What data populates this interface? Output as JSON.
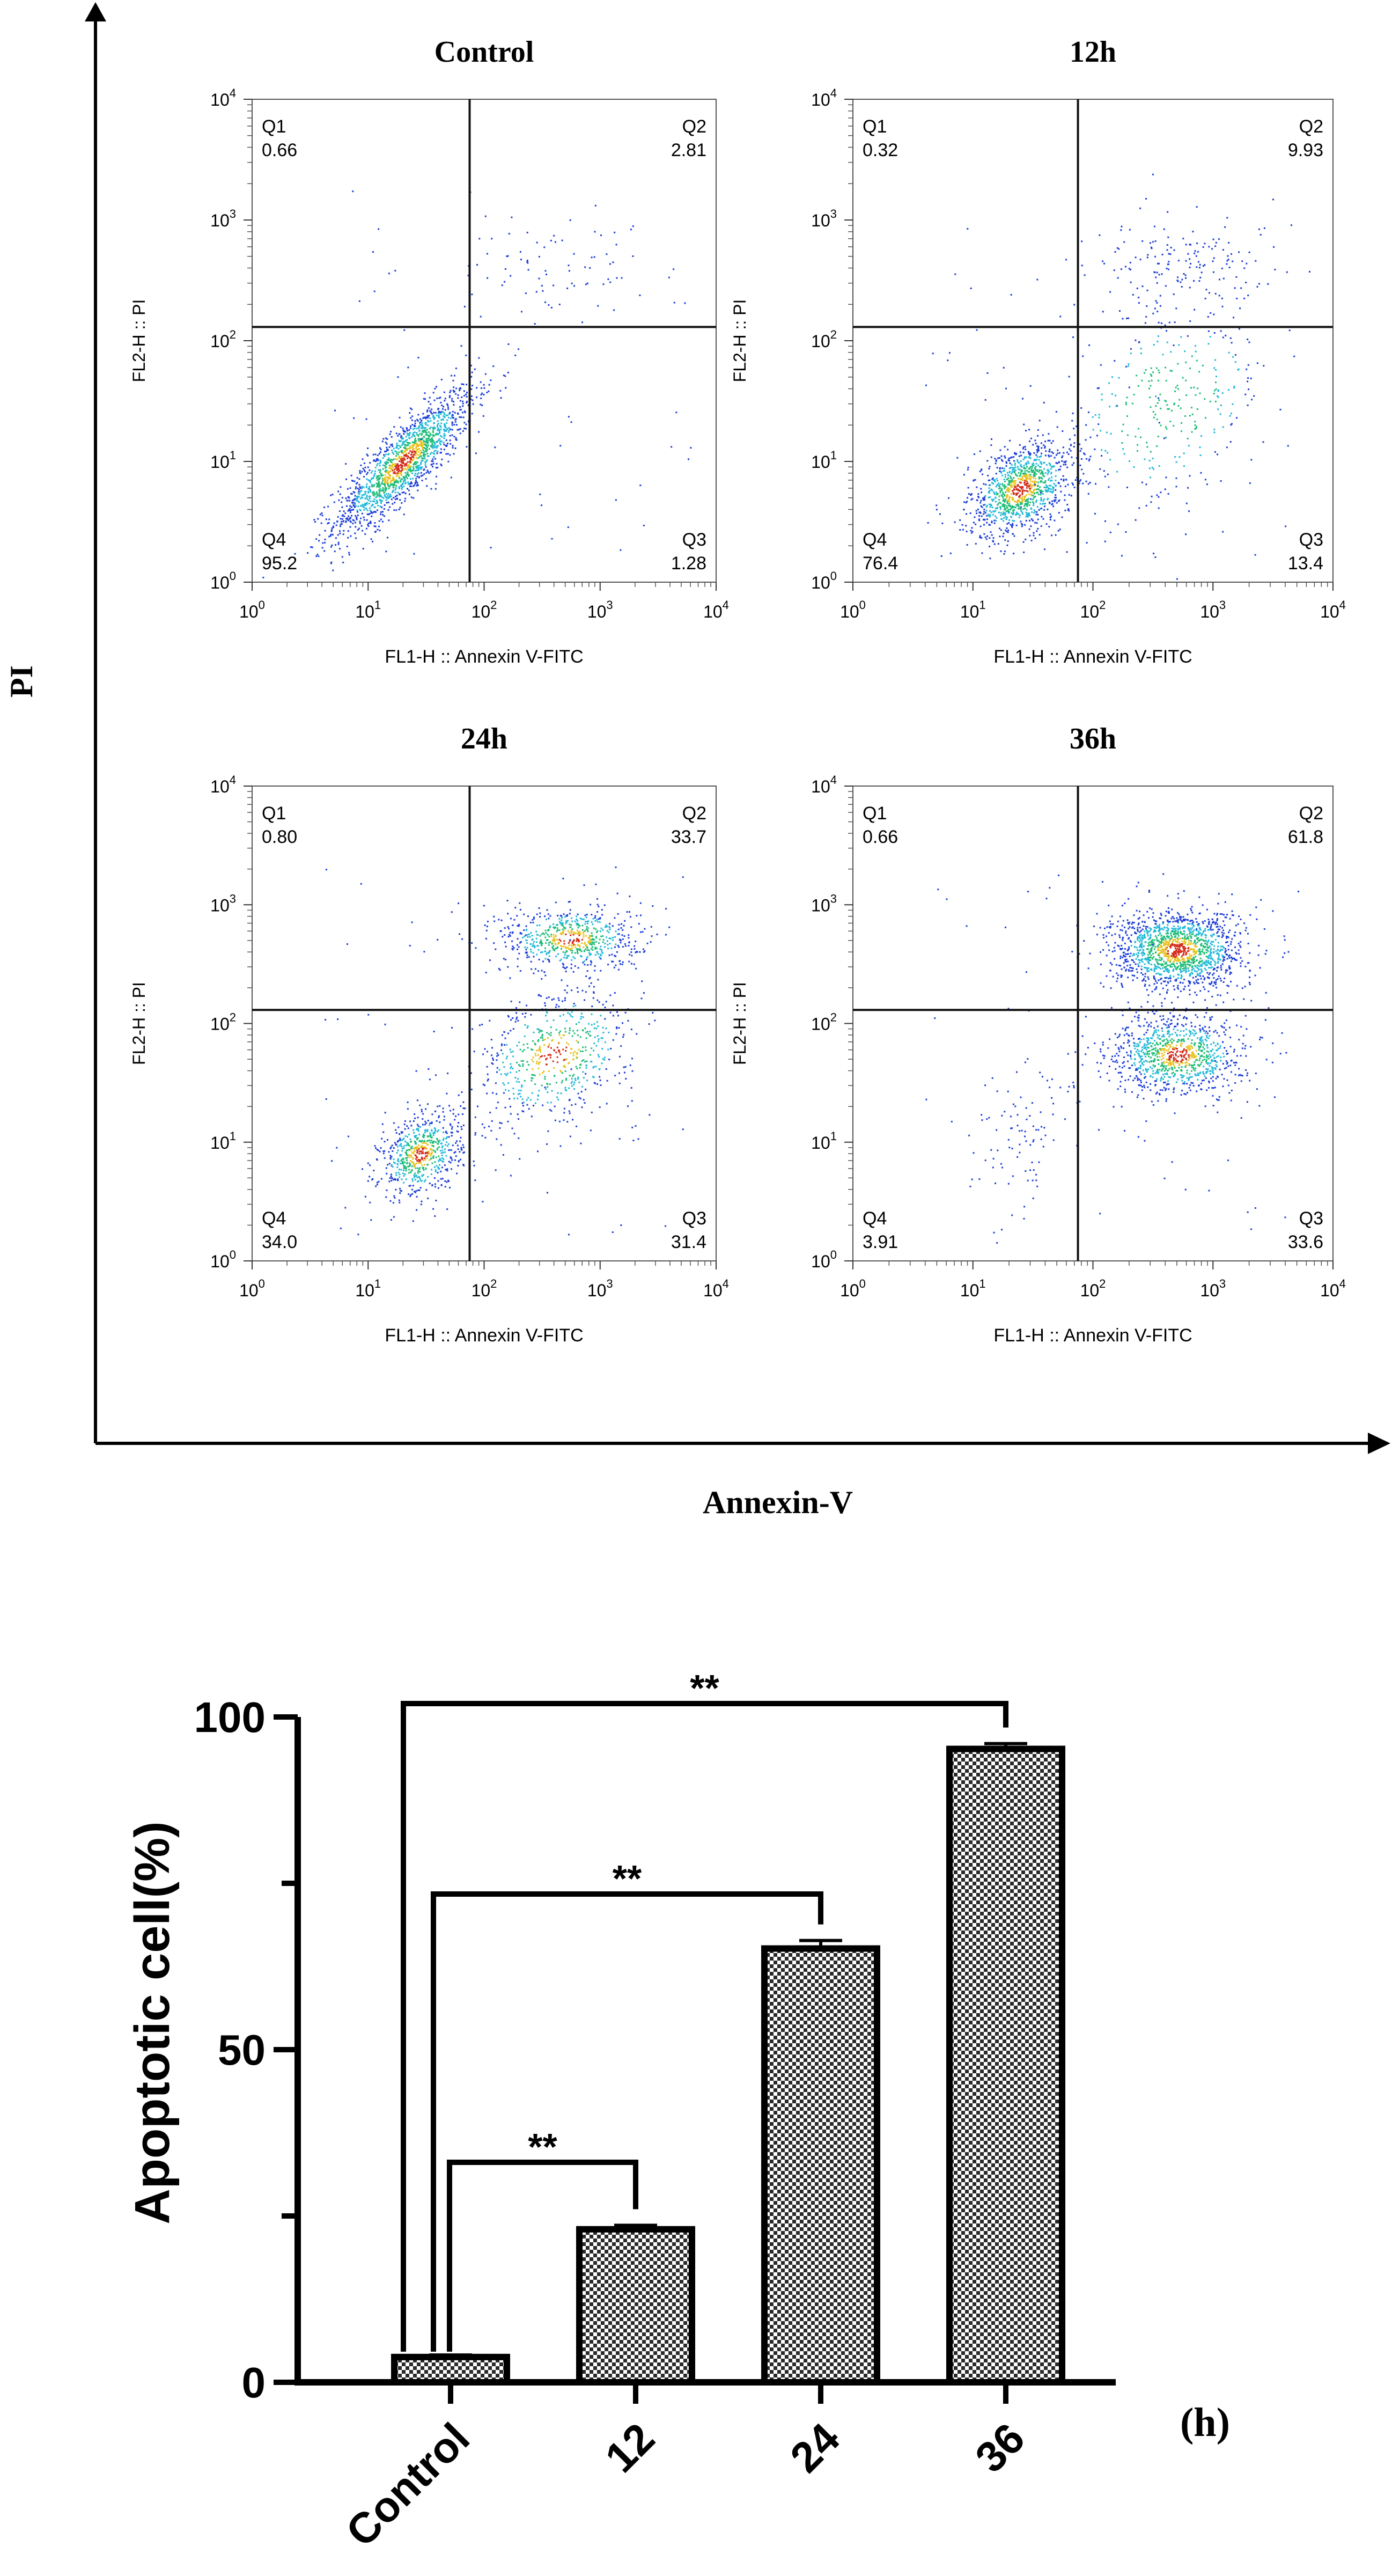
{
  "figure": {
    "outer_y_label": "PI",
    "outer_x_label": "Annexin-V"
  },
  "chart_data": [
    {
      "type": "scatter",
      "title": "Control",
      "xlabel": "FL1-H :: Annexin V-FITC",
      "ylabel": "FL2-H :: PI",
      "scale": "log",
      "xlim": [
        1,
        10000
      ],
      "ylim": [
        1,
        10000
      ],
      "xticks": [
        "10",
        "10",
        "10",
        "10",
        "10"
      ],
      "xtick_exps": [
        "0",
        "1",
        "2",
        "3",
        "4"
      ],
      "gate": {
        "x": 75,
        "y": 130
      },
      "quadrants": {
        "q1": {
          "label": "Q1",
          "value": "0.66"
        },
        "q2": {
          "label": "Q2",
          "value": "2.81"
        },
        "q3": {
          "label": "Q3",
          "value": "1.28"
        },
        "q4": {
          "label": "Q4",
          "value": "95.2"
        }
      },
      "populations": [
        {
          "cx": 20,
          "cy": 10,
          "sx": 0.3,
          "sy": 0.3,
          "n": 1600,
          "corr": 0.85
        },
        {
          "cx": 400,
          "cy": 400,
          "sx": 0.4,
          "sy": 0.18,
          "n": 70,
          "corr": 0
        }
      ]
    },
    {
      "type": "scatter",
      "title": "12h",
      "xlabel": "FL1-H :: Annexin V-FITC",
      "ylabel": "FL2-H :: PI",
      "scale": "log",
      "xlim": [
        1,
        10000
      ],
      "ylim": [
        1,
        10000
      ],
      "gate": {
        "x": 75,
        "y": 130
      },
      "quadrants": {
        "q1": {
          "label": "Q1",
          "value": "0.32"
        },
        "q2": {
          "label": "Q2",
          "value": "9.93"
        },
        "q3": {
          "label": "Q3",
          "value": "13.4"
        },
        "q4": {
          "label": "Q4",
          "value": "76.4"
        }
      },
      "populations": [
        {
          "cx": 25,
          "cy": 6,
          "sx": 0.22,
          "sy": 0.2,
          "n": 1100,
          "corr": 0.4
        },
        {
          "cx": 400,
          "cy": 30,
          "sx": 0.45,
          "sy": 0.45,
          "n": 350,
          "corr": 0.3
        },
        {
          "cx": 500,
          "cy": 450,
          "sx": 0.35,
          "sy": 0.15,
          "n": 140,
          "corr": 0
        }
      ]
    },
    {
      "type": "scatter",
      "title": "24h",
      "xlabel": "FL1-H :: Annexin V-FITC",
      "ylabel": "FL2-H :: PI",
      "scale": "log",
      "xlim": [
        1,
        10000
      ],
      "ylim": [
        1,
        10000
      ],
      "gate": {
        "x": 75,
        "y": 130
      },
      "quadrants": {
        "q1": {
          "label": "Q1",
          "value": "0.80"
        },
        "q2": {
          "label": "Q2",
          "value": "33.7"
        },
        "q3": {
          "label": "Q3",
          "value": "31.4"
        },
        "q4": {
          "label": "Q4",
          "value": "34.0"
        }
      },
      "populations": [
        {
          "cx": 28,
          "cy": 8,
          "sx": 0.18,
          "sy": 0.18,
          "n": 650,
          "corr": 0.3
        },
        {
          "cx": 400,
          "cy": 55,
          "sx": 0.35,
          "sy": 0.3,
          "n": 600,
          "corr": 0.3
        },
        {
          "cx": 550,
          "cy": 520,
          "sx": 0.3,
          "sy": 0.14,
          "n": 650,
          "corr": 0
        }
      ]
    },
    {
      "type": "scatter",
      "title": "36h",
      "xlabel": "FL1-H :: Annexin V-FITC",
      "ylabel": "FL2-H :: PI",
      "scale": "log",
      "xlim": [
        1,
        10000
      ],
      "ylim": [
        1,
        10000
      ],
      "gate": {
        "x": 75,
        "y": 130
      },
      "quadrants": {
        "q1": {
          "label": "Q1",
          "value": "0.66"
        },
        "q2": {
          "label": "Q2",
          "value": "61.8"
        },
        "q3": {
          "label": "Q3",
          "value": "33.6"
        },
        "q4": {
          "label": "Q4",
          "value": "3.91"
        }
      },
      "populations": [
        {
          "cx": 500,
          "cy": 420,
          "sx": 0.28,
          "sy": 0.17,
          "n": 1500,
          "corr": 0
        },
        {
          "cx": 500,
          "cy": 55,
          "sx": 0.28,
          "sy": 0.17,
          "n": 1000,
          "corr": 0
        },
        {
          "cx": 25,
          "cy": 12,
          "sx": 0.22,
          "sy": 0.35,
          "n": 90,
          "corr": 0.3
        }
      ]
    },
    {
      "type": "bar",
      "categories": [
        "Control",
        "12",
        "24",
        "36"
      ],
      "values": [
        3.8,
        23,
        65.2,
        95.2
      ],
      "errors": [
        0.3,
        0.6,
        1.2,
        0.8
      ],
      "ylabel": "Apoptotic cell(%)",
      "xunit": "(h)",
      "ylim": [
        0,
        100
      ],
      "yticks": [
        0,
        50,
        100
      ],
      "significance": [
        {
          "from": 0,
          "to": 1,
          "label": "**"
        },
        {
          "from": 0,
          "to": 2,
          "label": "**"
        },
        {
          "from": 0,
          "to": 3,
          "label": "**"
        }
      ]
    }
  ]
}
